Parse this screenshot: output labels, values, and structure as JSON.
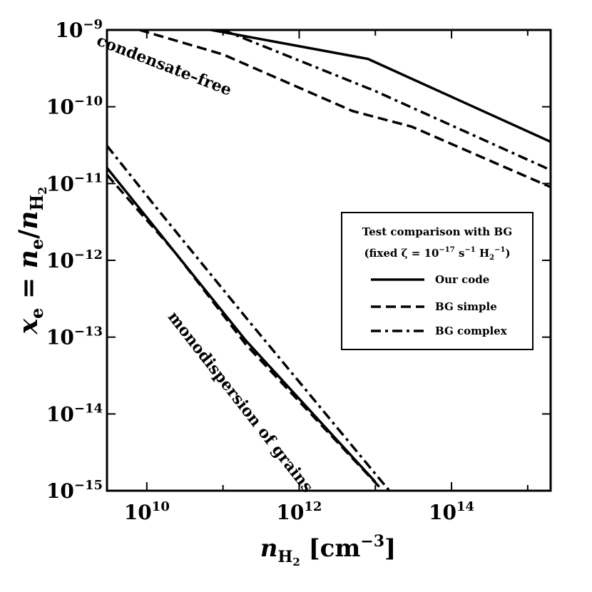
{
  "chart_data": {
    "type": "line",
    "xscale": "log",
    "yscale": "log",
    "xlim": [
      3000000000.0,
      2000000000000000.0
    ],
    "ylim": [
      1e-15,
      1e-09
    ],
    "grid": false,
    "legend_position": "right",
    "xlabel": {
      "main": "n",
      "sub": "H",
      "subsub": "2",
      "unit_open": " [cm",
      "unit_sup": "−3",
      "unit_close": "]"
    },
    "ylabel": {
      "lhs": "x",
      "lhs_sub": "e",
      "eq": " = ",
      "num": "n",
      "num_sub": "e",
      "slash": "/",
      "den": "n",
      "den_sub": "H",
      "den_subsub": "2"
    },
    "x_ticks": [
      {
        "value": 10000000000.0,
        "base": "10",
        "exp": "10"
      },
      {
        "value": 1000000000000.0,
        "base": "10",
        "exp": "12"
      },
      {
        "value": 100000000000000.0,
        "base": "10",
        "exp": "14"
      }
    ],
    "y_ticks": [
      {
        "value": 1e-09,
        "base": "10",
        "exp": "−9"
      },
      {
        "value": 1e-10,
        "base": "10",
        "exp": "−10"
      },
      {
        "value": 1e-11,
        "base": "10",
        "exp": "−11"
      },
      {
        "value": 1e-12,
        "base": "10",
        "exp": "−12"
      },
      {
        "value": 1e-13,
        "base": "10",
        "exp": "−13"
      },
      {
        "value": 1e-14,
        "base": "10",
        "exp": "−14"
      },
      {
        "value": 1e-15,
        "base": "10",
        "exp": "−15"
      }
    ],
    "legend": {
      "title_line1": "Test comparison with BG",
      "title_line2": {
        "pre": "(fixed ζ = 10",
        "exp1": "−17",
        "mid": " s",
        "exp2": "−1",
        "h": " H",
        "h_sub": "2",
        "exp3": "−1",
        "post": ")"
      },
      "entries": [
        {
          "label": "Our code",
          "dash": "solid"
        },
        {
          "label": "BG simple",
          "dash": "dashed"
        },
        {
          "label": "BG complex",
          "dash": "dashdot"
        }
      ]
    },
    "annotations": [
      {
        "text": "condensate–free",
        "x": 16000000000.0,
        "y": 3e-10,
        "angle": 21
      },
      {
        "text": "monodispersion of grains",
        "x": 150000000000.0,
        "y": 1.3e-14,
        "angle": 52
      }
    ],
    "series": [
      {
        "group": "condensate-free",
        "dash": "solid",
        "x": [
          70000000000.0,
          8000000000000.0,
          2000000000000000.0
        ],
        "y": [
          1e-09,
          4.2e-10,
          3.5e-11
        ]
      },
      {
        "group": "condensate-free",
        "dash": "dashed",
        "x": [
          8000000000.0,
          100000000000.0,
          5000000000000.0,
          30000000000000.0,
          2000000000000000.0
        ],
        "y": [
          1e-09,
          4.8e-10,
          8.8e-11,
          5.5e-11,
          9e-12
        ]
      },
      {
        "group": "condensate-free",
        "dash": "dashdot",
        "x": [
          100000000000.0,
          10000000000000.0,
          2000000000000000.0
        ],
        "y": [
          1e-09,
          1.6e-10,
          1.5e-11
        ]
      },
      {
        "group": "monodispersion",
        "dash": "solid",
        "x": [
          3000000000.0,
          200000000000.0,
          10000000000000.0
        ],
        "y": [
          1.6e-11,
          9e-14,
          1.3e-15
        ]
      },
      {
        "group": "monodispersion",
        "dash": "dashed",
        "x": [
          3000000000.0,
          23000000000.0,
          200000000000.0,
          12000000000000.0
        ],
        "y": [
          1.3e-11,
          1.3e-12,
          8e-14,
          1.05e-15
        ]
      },
      {
        "group": "monodispersion",
        "dash": "dashdot",
        "x": [
          3000000000.0,
          13000000000.0,
          200000000000.0,
          15000000000000.0
        ],
        "y": [
          3.1e-11,
          5e-12,
          1.8e-13,
          1.02e-15
        ]
      }
    ]
  }
}
